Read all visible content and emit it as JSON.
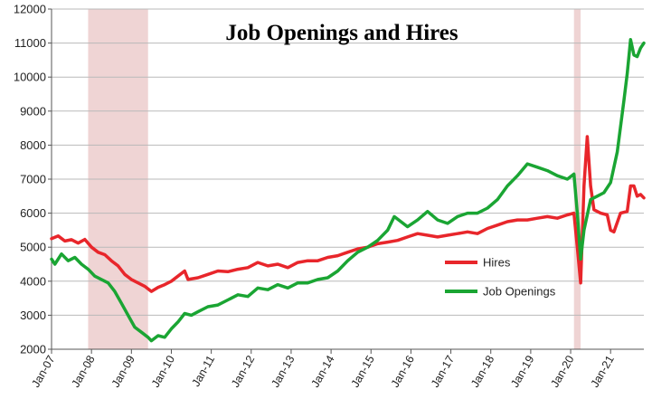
{
  "chart_data": {
    "type": "line",
    "title": "Job Openings and Hires",
    "xlabel": "",
    "ylabel": "",
    "ylim": [
      2000,
      12000
    ],
    "y_ticks": [
      2000,
      3000,
      4000,
      5000,
      6000,
      7000,
      8000,
      9000,
      10000,
      11000,
      12000
    ],
    "x_ticks": [
      "Jan-07",
      "Jan-08",
      "Jan-09",
      "Jan-10",
      "Jan-11",
      "Jan-12",
      "Jan-13",
      "Jan-14",
      "Jan-15",
      "Jan-16",
      "Jan-17",
      "Jan-18",
      "Jan-19",
      "Jan-20",
      "Jan-21"
    ],
    "x_range": [
      "2007-01",
      "2021-11"
    ],
    "grid": true,
    "legend_placement": "right-middle",
    "shaded_periods": [
      {
        "start": "2007-12",
        "end": "2009-06",
        "color": "#efd4d4"
      },
      {
        "start": "2020-02",
        "end": "2020-04",
        "color": "#efd4d4"
      }
    ],
    "series": [
      {
        "name": "Hires",
        "color": "#e8262b",
        "points": [
          [
            "2007-01",
            5250
          ],
          [
            "2007-03",
            5330
          ],
          [
            "2007-05",
            5180
          ],
          [
            "2007-07",
            5220
          ],
          [
            "2007-09",
            5120
          ],
          [
            "2007-11",
            5230
          ],
          [
            "2008-01",
            5000
          ],
          [
            "2008-03",
            4850
          ],
          [
            "2008-05",
            4780
          ],
          [
            "2008-07",
            4600
          ],
          [
            "2008-09",
            4450
          ],
          [
            "2008-11",
            4200
          ],
          [
            "2009-01",
            4050
          ],
          [
            "2009-03",
            3950
          ],
          [
            "2009-05",
            3850
          ],
          [
            "2009-07",
            3700
          ],
          [
            "2009-09",
            3820
          ],
          [
            "2009-11",
            3900
          ],
          [
            "2010-01",
            4000
          ],
          [
            "2010-03",
            4150
          ],
          [
            "2010-05",
            4300
          ],
          [
            "2010-06",
            4050
          ],
          [
            "2010-09",
            4100
          ],
          [
            "2010-12",
            4200
          ],
          [
            "2011-03",
            4300
          ],
          [
            "2011-06",
            4280
          ],
          [
            "2011-09",
            4350
          ],
          [
            "2011-12",
            4400
          ],
          [
            "2012-03",
            4550
          ],
          [
            "2012-06",
            4450
          ],
          [
            "2012-09",
            4500
          ],
          [
            "2012-12",
            4400
          ],
          [
            "2013-03",
            4550
          ],
          [
            "2013-06",
            4600
          ],
          [
            "2013-09",
            4600
          ],
          [
            "2013-12",
            4700
          ],
          [
            "2014-03",
            4750
          ],
          [
            "2014-06",
            4850
          ],
          [
            "2014-09",
            4950
          ],
          [
            "2014-12",
            5000
          ],
          [
            "2015-03",
            5100
          ],
          [
            "2015-06",
            5150
          ],
          [
            "2015-09",
            5200
          ],
          [
            "2015-12",
            5300
          ],
          [
            "2016-03",
            5400
          ],
          [
            "2016-06",
            5350
          ],
          [
            "2016-09",
            5300
          ],
          [
            "2016-12",
            5350
          ],
          [
            "2017-03",
            5400
          ],
          [
            "2017-06",
            5450
          ],
          [
            "2017-09",
            5400
          ],
          [
            "2017-12",
            5550
          ],
          [
            "2018-03",
            5650
          ],
          [
            "2018-06",
            5750
          ],
          [
            "2018-09",
            5800
          ],
          [
            "2018-12",
            5800
          ],
          [
            "2019-03",
            5850
          ],
          [
            "2019-06",
            5900
          ],
          [
            "2019-09",
            5850
          ],
          [
            "2019-12",
            5950
          ],
          [
            "2020-02",
            6000
          ],
          [
            "2020-03",
            5000
          ],
          [
            "2020-04",
            3950
          ],
          [
            "2020-05",
            6800
          ],
          [
            "2020-06",
            8250
          ],
          [
            "2020-07",
            6800
          ],
          [
            "2020-08",
            6100
          ],
          [
            "2020-10",
            6000
          ],
          [
            "2020-12",
            5950
          ],
          [
            "2021-01",
            5500
          ],
          [
            "2021-02",
            5450
          ],
          [
            "2021-04",
            6000
          ],
          [
            "2021-06",
            6050
          ],
          [
            "2021-07",
            6800
          ],
          [
            "2021-08",
            6800
          ],
          [
            "2021-09",
            6500
          ],
          [
            "2021-10",
            6550
          ],
          [
            "2021-11",
            6450
          ]
        ]
      },
      {
        "name": "Job Openings",
        "color": "#1aa533",
        "points": [
          [
            "2007-01",
            4650
          ],
          [
            "2007-02",
            4500
          ],
          [
            "2007-04",
            4800
          ],
          [
            "2007-06",
            4600
          ],
          [
            "2007-08",
            4700
          ],
          [
            "2007-10",
            4500
          ],
          [
            "2007-12",
            4350
          ],
          [
            "2008-02",
            4150
          ],
          [
            "2008-04",
            4050
          ],
          [
            "2008-06",
            3950
          ],
          [
            "2008-08",
            3700
          ],
          [
            "2008-10",
            3350
          ],
          [
            "2008-12",
            3000
          ],
          [
            "2009-02",
            2650
          ],
          [
            "2009-04",
            2500
          ],
          [
            "2009-06",
            2350
          ],
          [
            "2009-07",
            2250
          ],
          [
            "2009-09",
            2400
          ],
          [
            "2009-11",
            2350
          ],
          [
            "2010-01",
            2600
          ],
          [
            "2010-03",
            2800
          ],
          [
            "2010-05",
            3050
          ],
          [
            "2010-07",
            3000
          ],
          [
            "2010-09",
            3100
          ],
          [
            "2010-12",
            3250
          ],
          [
            "2011-03",
            3300
          ],
          [
            "2011-06",
            3450
          ],
          [
            "2011-09",
            3600
          ],
          [
            "2011-12",
            3550
          ],
          [
            "2012-03",
            3800
          ],
          [
            "2012-06",
            3750
          ],
          [
            "2012-09",
            3900
          ],
          [
            "2012-12",
            3800
          ],
          [
            "2013-03",
            3950
          ],
          [
            "2013-06",
            3950
          ],
          [
            "2013-09",
            4050
          ],
          [
            "2013-12",
            4100
          ],
          [
            "2014-03",
            4300
          ],
          [
            "2014-06",
            4600
          ],
          [
            "2014-09",
            4850
          ],
          [
            "2014-12",
            5000
          ],
          [
            "2015-03",
            5200
          ],
          [
            "2015-06",
            5500
          ],
          [
            "2015-08",
            5900
          ],
          [
            "2015-12",
            5600
          ],
          [
            "2016-03",
            5800
          ],
          [
            "2016-06",
            6050
          ],
          [
            "2016-09",
            5800
          ],
          [
            "2016-12",
            5700
          ],
          [
            "2017-03",
            5900
          ],
          [
            "2017-06",
            6000
          ],
          [
            "2017-09",
            6000
          ],
          [
            "2017-12",
            6150
          ],
          [
            "2018-03",
            6400
          ],
          [
            "2018-06",
            6800
          ],
          [
            "2018-09",
            7100
          ],
          [
            "2018-12",
            7450
          ],
          [
            "2019-03",
            7350
          ],
          [
            "2019-06",
            7250
          ],
          [
            "2019-09",
            7100
          ],
          [
            "2019-12",
            7000
          ],
          [
            "2020-02",
            7150
          ],
          [
            "2020-03",
            6000
          ],
          [
            "2020-04",
            4650
          ],
          [
            "2020-05",
            5500
          ],
          [
            "2020-07",
            6400
          ],
          [
            "2020-09",
            6500
          ],
          [
            "2020-11",
            6600
          ],
          [
            "2021-01",
            6900
          ],
          [
            "2021-03",
            7800
          ],
          [
            "2021-05",
            9300
          ],
          [
            "2021-06",
            10100
          ],
          [
            "2021-07",
            11100
          ],
          [
            "2021-08",
            10650
          ],
          [
            "2021-09",
            10600
          ],
          [
            "2021-10",
            10850
          ],
          [
            "2021-11",
            11000
          ]
        ]
      }
    ]
  }
}
